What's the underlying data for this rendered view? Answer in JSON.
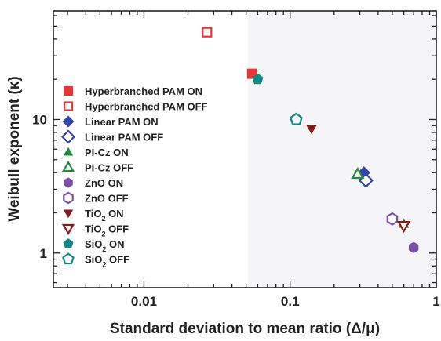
{
  "chart_data": {
    "type": "scatter",
    "xlabel": "Standard deviation to mean ratio (Δ/μ)",
    "ylabel": "Weibull exponent (κ)",
    "xscale": "log",
    "yscale": "log",
    "xlim": [
      0.0024,
      1.0
    ],
    "ylim": [
      0.55,
      65
    ],
    "x_ticks": [
      0.01,
      0.1,
      1
    ],
    "x_tick_labels": [
      "0.01",
      "0.1",
      "1"
    ],
    "y_ticks": [
      1,
      10
    ],
    "y_tick_labels": [
      "1",
      "10"
    ],
    "grid": false,
    "legend_position": "left",
    "series": [
      {
        "name": "Hyperbranched PAM ON",
        "name_main": "Hyperbranched PAM ON",
        "name_sub": "",
        "name_tail": "",
        "marker": "square",
        "filled": true,
        "color": "#ee3333",
        "points": [
          {
            "x": 0.055,
            "y": 22
          }
        ]
      },
      {
        "name": "Hyperbranched PAM OFF",
        "name_main": "Hyperbranched PAM OFF",
        "name_sub": "",
        "name_tail": "",
        "marker": "square",
        "filled": false,
        "color": "#ee3333",
        "points": [
          {
            "x": 0.027,
            "y": 45
          }
        ]
      },
      {
        "name": "Linear PAM ON",
        "name_main": "Linear PAM ON",
        "name_sub": "",
        "name_tail": "",
        "marker": "diamond",
        "filled": true,
        "color": "#3344aa",
        "points": [
          {
            "x": 0.32,
            "y": 4.0
          }
        ]
      },
      {
        "name": "Linear PAM OFF",
        "name_main": "Linear PAM OFF",
        "name_sub": "",
        "name_tail": "",
        "marker": "diamond",
        "filled": false,
        "color": "#3344aa",
        "points": [
          {
            "x": 0.33,
            "y": 3.5
          }
        ]
      },
      {
        "name": "PI-Cz ON",
        "name_main": "PI-Cz ON",
        "name_sub": "",
        "name_tail": "",
        "marker": "triangle-up",
        "filled": true,
        "color": "#1f8a3a",
        "points": [
          {
            "x": 0.6,
            "y": 1.65
          }
        ]
      },
      {
        "name": "PI-Cz OFF",
        "name_main": "PI-Cz OFF",
        "name_sub": "",
        "name_tail": "",
        "marker": "triangle-up",
        "filled": false,
        "color": "#1f8a3a",
        "points": [
          {
            "x": 0.29,
            "y": 3.9
          }
        ]
      },
      {
        "name": "ZnO ON",
        "name_main": "ZnO ON",
        "name_sub": "",
        "name_tail": "",
        "marker": "hexagon",
        "filled": true,
        "color": "#7b4fa8",
        "points": [
          {
            "x": 0.7,
            "y": 1.1
          }
        ]
      },
      {
        "name": "ZnO OFF",
        "name_main": "ZnO OFF",
        "name_sub": "",
        "name_tail": "",
        "marker": "hexagon",
        "filled": false,
        "color": "#7b4fa8",
        "points": [
          {
            "x": 0.5,
            "y": 1.8
          }
        ]
      },
      {
        "name": "TiO2 ON",
        "name_main": "TiO",
        "name_sub": "2",
        "name_tail": " ON",
        "marker": "triangle-down",
        "filled": true,
        "color": "#8b1a1a",
        "points": [
          {
            "x": 0.14,
            "y": 8.5
          }
        ]
      },
      {
        "name": "TiO2 OFF",
        "name_main": "TiO",
        "name_sub": "2",
        "name_tail": " OFF",
        "marker": "triangle-down",
        "filled": false,
        "color": "#8b1a1a",
        "points": [
          {
            "x": 0.6,
            "y": 1.6
          }
        ]
      },
      {
        "name": "SiO2 ON",
        "name_main": "SiO",
        "name_sub": "2",
        "name_tail": " ON",
        "marker": "pentagon",
        "filled": true,
        "color": "#0e8a86",
        "points": [
          {
            "x": 0.06,
            "y": 20
          }
        ]
      },
      {
        "name": "SiO2 OFF",
        "name_main": "SiO",
        "name_sub": "2",
        "name_tail": " OFF",
        "marker": "pentagon",
        "filled": false,
        "color": "#0e8a86",
        "points": [
          {
            "x": 0.11,
            "y": 10
          }
        ]
      }
    ]
  }
}
